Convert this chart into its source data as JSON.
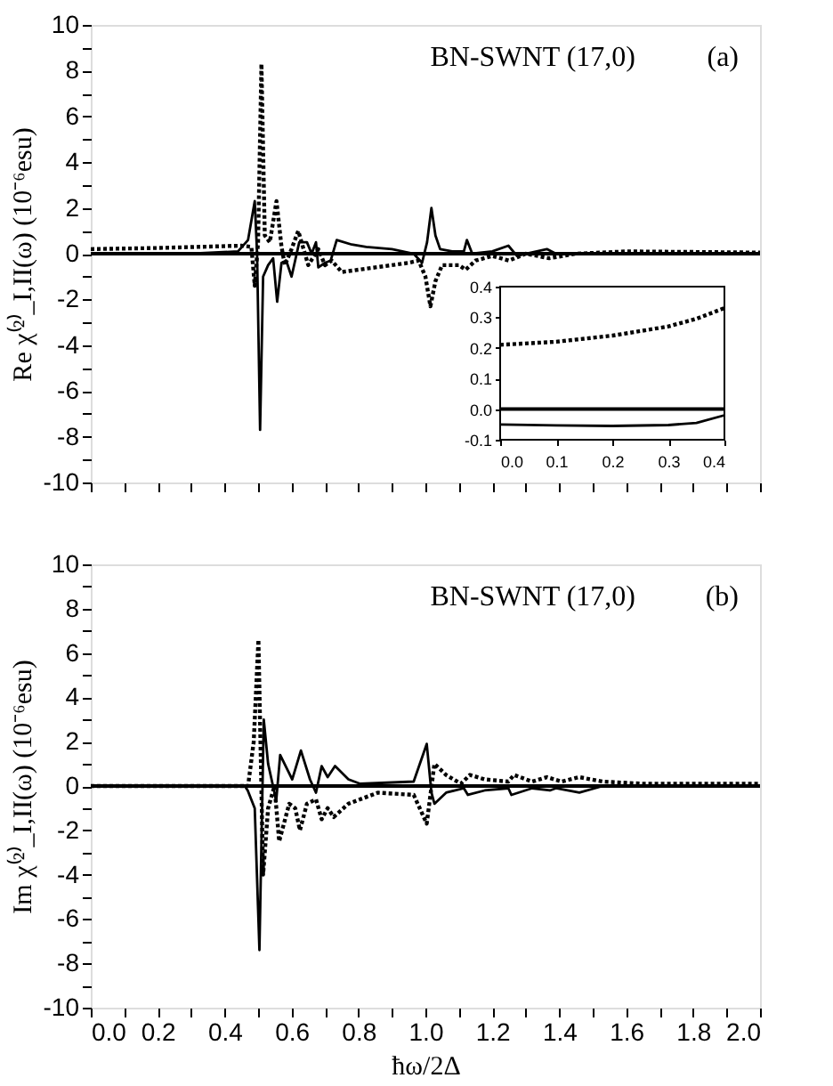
{
  "chart_data": [
    {
      "type": "line",
      "ylabel": "Re χ⁽²⁾_I,II(ω) (10⁻⁶esu)",
      "annotations": [
        "BN-SWNT (17,0)",
        "(a)"
      ],
      "grid": false,
      "tick_labels": "y",
      "xlim": [
        0,
        2
      ],
      "ylim": [
        -10,
        10
      ],
      "xticks": [
        {
          "value": 0,
          "label": null
        },
        {
          "value": 0.1,
          "label": null
        },
        {
          "value": 0.2,
          "label": null
        },
        {
          "value": 0.3,
          "label": null
        },
        {
          "value": 0.4,
          "label": null
        },
        {
          "value": 0.5,
          "label": null
        },
        {
          "value": 0.6,
          "label": null
        },
        {
          "value": 0.7,
          "label": null
        },
        {
          "value": 0.8,
          "label": null
        },
        {
          "value": 0.9,
          "label": null
        },
        {
          "value": 1,
          "label": null
        },
        {
          "value": 1.1,
          "label": null
        },
        {
          "value": 1.2,
          "label": null
        },
        {
          "value": 1.3,
          "label": null
        },
        {
          "value": 1.4,
          "label": null
        },
        {
          "value": 1.5,
          "label": null
        },
        {
          "value": 1.6,
          "label": null
        },
        {
          "value": 1.7,
          "label": null
        },
        {
          "value": 1.8,
          "label": null
        },
        {
          "value": 1.9,
          "label": null
        },
        {
          "value": 2,
          "label": null
        }
      ],
      "yticks": [
        -10,
        {
          "value": -9,
          "label": null
        },
        -8,
        {
          "value": -7,
          "label": null
        },
        -6,
        {
          "value": -5,
          "label": null
        },
        -4,
        {
          "value": -3,
          "label": null
        },
        -2,
        {
          "value": -1,
          "label": null
        },
        0,
        {
          "value": 1,
          "label": null
        },
        2,
        {
          "value": 3,
          "label": null
        },
        4,
        {
          "value": 5,
          "label": null
        },
        6,
        {
          "value": 7,
          "label": null
        },
        8,
        {
          "value": 9,
          "label": null
        },
        10
      ],
      "ref_lines": [
        {
          "axis": "y",
          "value": 0,
          "color": "#000000",
          "line_style": "solid"
        }
      ],
      "series": [
        {
          "color": "#000000",
          "line_style": "solid",
          "x": [
            0,
            0.3,
            0.44,
            0.47,
            0.49,
            0.497,
            0.506,
            0.515,
            0.53,
            0.545,
            0.557,
            0.57,
            0.584,
            0.6,
            0.623,
            0.646,
            0.66,
            0.673,
            0.68,
            0.7,
            0.717,
            0.735,
            0.78,
            0.823,
            0.9,
            0.965,
            0.99,
            1.005,
            1.018,
            1.03,
            1.044,
            1.08,
            1.115,
            1.124,
            1.14,
            1.2,
            1.248,
            1.274,
            1.3,
            1.363,
            1.39,
            1.5,
            2.0
          ],
          "values": [
            0,
            0,
            0.1,
            0.6,
            2.3,
            0,
            -7.7,
            -1,
            -0.5,
            -0.2,
            -2.1,
            -0.4,
            -0.3,
            -1.0,
            0.5,
            0.5,
            0,
            0.5,
            -0.6,
            -0.4,
            -0.3,
            0.6,
            0.4,
            0.3,
            0.2,
            0,
            -0.4,
            0.5,
            2.0,
            0.8,
            0.2,
            0.1,
            0.1,
            0.6,
            0,
            0.1,
            0.35,
            -0.1,
            0,
            0.2,
            0,
            0,
            0
          ]
        },
        {
          "color": "#000000",
          "line_style": "dotted",
          "x": [
            0,
            0.2,
            0.45,
            0.48,
            0.49,
            0.5,
            0.51,
            0.52,
            0.535,
            0.555,
            0.57,
            0.58,
            0.6,
            0.62,
            0.65,
            0.68,
            0.7,
            0.72,
            0.75,
            0.8,
            0.95,
            0.98,
            1.0,
            1.015,
            1.03,
            1.05,
            1.1,
            1.12,
            1.15,
            1.2,
            1.25,
            1.3,
            1.37,
            1.45,
            1.6,
            2.0
          ],
          "values": [
            0.2,
            0.25,
            0.35,
            0.3,
            -1.4,
            0.5,
            8.3,
            0.8,
            0.5,
            2.3,
            0.3,
            -0.5,
            0.2,
            1.0,
            -0.5,
            0.2,
            -0.5,
            -0.3,
            -0.8,
            -0.7,
            -0.4,
            -0.3,
            -1.0,
            -2.3,
            -1.2,
            -0.5,
            -0.5,
            -0.7,
            -0.3,
            -0.1,
            -0.3,
            0,
            -0.2,
            0,
            0.1,
            0.05
          ]
        }
      ]
    },
    {
      "type": "line",
      "grid": false,
      "xlim": [
        0,
        0.4
      ],
      "ylim": [
        -0.1,
        0.4
      ],
      "xticks": [
        {
          "value": 0,
          "label": "0.0"
        },
        0.1,
        0.2,
        0.3,
        0.4
      ],
      "yticks": [
        -0.1,
        {
          "value": 0,
          "label": "0.0"
        },
        0.1,
        0.2,
        0.3,
        0.4
      ],
      "ref_lines": [
        {
          "axis": "y",
          "value": 0,
          "color": "#000000",
          "line_style": "solid"
        }
      ],
      "series": [
        {
          "color": "#000000",
          "line_style": "solid",
          "x": [
            0,
            0.1,
            0.2,
            0.3,
            0.35,
            0.4
          ],
          "values": [
            -0.05,
            -0.053,
            -0.055,
            -0.052,
            -0.045,
            -0.02
          ]
        },
        {
          "color": "#000000",
          "line_style": "dotted",
          "x": [
            0,
            0.05,
            0.1,
            0.15,
            0.2,
            0.25,
            0.3,
            0.35,
            0.4
          ],
          "values": [
            0.21,
            0.215,
            0.22,
            0.23,
            0.24,
            0.255,
            0.27,
            0.295,
            0.33
          ]
        }
      ]
    },
    {
      "type": "line",
      "xlabel": "ħω/2Δ",
      "ylabel": "Im χ⁽²⁾_I,II(ω) (10⁻⁶esu)",
      "annotations": [
        "BN-SWNT (17,0)",
        "(b)"
      ],
      "grid": false,
      "xlim": [
        0,
        2
      ],
      "ylim": [
        -10,
        10
      ],
      "xticks": [
        {
          "value": 0,
          "label": "0.0"
        },
        {
          "value": 0.1,
          "label": null
        },
        0.2,
        {
          "value": 0.3,
          "label": null
        },
        0.4,
        {
          "value": 0.5,
          "label": null
        },
        0.6,
        {
          "value": 0.7,
          "label": null
        },
        0.8,
        {
          "value": 0.9,
          "label": null
        },
        {
          "value": 1,
          "label": "1.0"
        },
        {
          "value": 1.1,
          "label": null
        },
        1.2,
        {
          "value": 1.3,
          "label": null
        },
        1.4,
        {
          "value": 1.5,
          "label": null
        },
        1.6,
        {
          "value": 1.7,
          "label": null
        },
        1.8,
        {
          "value": 1.9,
          "label": null
        },
        {
          "value": 2,
          "label": "2.0"
        }
      ],
      "yticks": [
        -10,
        {
          "value": -9,
          "label": null
        },
        -8,
        {
          "value": -7,
          "label": null
        },
        -6,
        {
          "value": -5,
          "label": null
        },
        -4,
        {
          "value": -3,
          "label": null
        },
        -2,
        {
          "value": -1,
          "label": null
        },
        0,
        {
          "value": 1,
          "label": null
        },
        2,
        {
          "value": 3,
          "label": null
        },
        4,
        {
          "value": 5,
          "label": null
        },
        6,
        {
          "value": 7,
          "label": null
        },
        8,
        {
          "value": 9,
          "label": null
        },
        10
      ],
      "ref_lines": [
        {
          "axis": "y",
          "value": 0,
          "color": "#000000",
          "line_style": "solid"
        }
      ],
      "series": [
        {
          "color": "#000000",
          "line_style": "solid",
          "x": [
            0,
            0.46,
            0.469,
            0.49,
            0.504,
            0.517,
            0.53,
            0.549,
            0.554,
            0.566,
            0.602,
            0.628,
            0.655,
            0.673,
            0.69,
            0.708,
            0.73,
            0.77,
            0.805,
            0.965,
            1.004,
            1.018,
            1.027,
            1.062,
            1.115,
            1.127,
            1.177,
            1.248,
            1.257,
            1.319,
            1.372,
            1.39,
            1.46,
            1.53,
            1.6,
            2.0
          ],
          "values": [
            0,
            0,
            -0.2,
            -1.0,
            -7.4,
            3.0,
            1.0,
            -0.3,
            -0.7,
            1.4,
            0.3,
            1.6,
            0.3,
            -0.3,
            0.9,
            0.4,
            0.9,
            0.3,
            0.1,
            0.2,
            1.9,
            -0.3,
            -0.8,
            -0.3,
            -0.1,
            -0.4,
            -0.2,
            -0.1,
            -0.4,
            -0.1,
            -0.2,
            -0.1,
            -0.3,
            0,
            0,
            0
          ]
        },
        {
          "color": "#000000",
          "line_style": "dotted",
          "x": [
            0,
            0.47,
            0.487,
            0.501,
            0.515,
            0.53,
            0.549,
            0.563,
            0.593,
            0.611,
            0.625,
            0.646,
            0.673,
            0.69,
            0.708,
            0.726,
            0.77,
            0.858,
            0.965,
            1.004,
            1.027,
            1.062,
            1.106,
            1.133,
            1.177,
            1.248,
            1.265,
            1.319,
            1.363,
            1.407,
            1.46,
            1.53,
            1.655,
            2.0
          ],
          "values": [
            0,
            0,
            2.0,
            6.6,
            -4.0,
            -1.0,
            0,
            -2.5,
            -0.8,
            -1.0,
            -2.0,
            -0.8,
            -0.6,
            -1.5,
            -1.0,
            -1.4,
            -0.8,
            -0.3,
            -0.4,
            -1.7,
            1.0,
            0.5,
            0.1,
            0.5,
            0.3,
            0.2,
            0.5,
            0.2,
            0.4,
            0.2,
            0.4,
            0.2,
            0.1,
            0.1
          ]
        }
      ]
    }
  ]
}
